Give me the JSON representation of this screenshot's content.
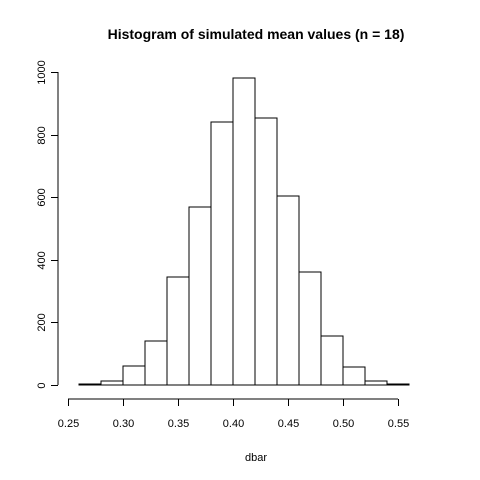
{
  "chart_data": {
    "type": "bar",
    "title": "Histogram of simulated mean values (n = 18)",
    "xlabel": "dbar",
    "ylabel": "",
    "xlim": [
      0.26,
      0.58
    ],
    "ylim": [
      0,
      1000
    ],
    "x_ticks": [
      0.25,
      0.3,
      0.35,
      0.4,
      0.45,
      0.5,
      0.55
    ],
    "x_tick_labels": [
      "0.25",
      "0.30",
      "0.35",
      "0.40",
      "0.45",
      "0.50",
      "0.55"
    ],
    "y_ticks": [
      0,
      200,
      400,
      600,
      800,
      1000
    ],
    "y_tick_labels": [
      "0",
      "200",
      "400",
      "600",
      "800",
      "1000"
    ],
    "bins": [
      {
        "start": 0.26,
        "end": 0.28,
        "count": 2
      },
      {
        "start": 0.28,
        "end": 0.3,
        "count": 12
      },
      {
        "start": 0.3,
        "end": 0.32,
        "count": 62
      },
      {
        "start": 0.32,
        "end": 0.34,
        "count": 142
      },
      {
        "start": 0.34,
        "end": 0.36,
        "count": 345
      },
      {
        "start": 0.36,
        "end": 0.38,
        "count": 570
      },
      {
        "start": 0.38,
        "end": 0.4,
        "count": 840
      },
      {
        "start": 0.4,
        "end": 0.42,
        "count": 980
      },
      {
        "start": 0.42,
        "end": 0.44,
        "count": 852
      },
      {
        "start": 0.44,
        "end": 0.46,
        "count": 605
      },
      {
        "start": 0.46,
        "end": 0.48,
        "count": 362
      },
      {
        "start": 0.48,
        "end": 0.5,
        "count": 158
      },
      {
        "start": 0.5,
        "end": 0.52,
        "count": 56
      },
      {
        "start": 0.52,
        "end": 0.54,
        "count": 14
      },
      {
        "start": 0.54,
        "end": 0.56,
        "count": 3
      },
      {
        "start": 0.56,
        "end": 0.58,
        "count": 1
      }
    ],
    "grid": false,
    "bar_fill": "#ffffff",
    "bar_stroke": "#000000"
  }
}
